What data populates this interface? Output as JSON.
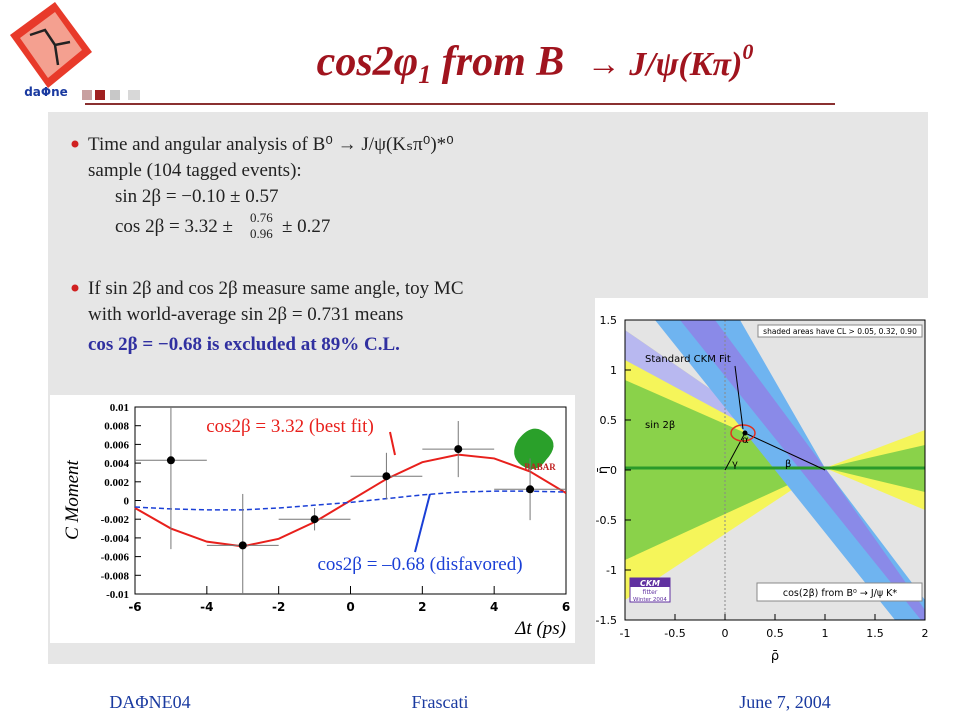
{
  "header": {
    "logo": "daΦne",
    "title": [
      "cos2",
      "φ",
      "1",
      " from B ",
      "→ J/ψ(Kπ)",
      "0"
    ]
  },
  "bullet_1": {
    "lines": [
      "Time and angular analysis of B⁰ → J/ψ(Kₛπ⁰)*⁰",
      "sample (104 tagged events):",
      "sin 2β = −0.10 ± 0.57"
    ],
    "result": {
      "lead": "cos 2β = 3.32 ±",
      "upper": "0.76",
      "lower": "0.96",
      "tail": "± 0.27"
    }
  },
  "bullet_2": {
    "lines": [
      "If sin 2β and cos 2β measure same angle, toy MC",
      "with world-average sin 2β = 0.731 means"
    ],
    "conclusion": "cos 2β = −0.68 is excluded at 89% C.L."
  },
  "footer": [
    "DAΦNE04",
    "Frascati",
    "June 7, 2004"
  ],
  "chart_data": [
    {
      "type": "scatter",
      "xlabel": "Δt (ps)",
      "ylabel": "C Moment",
      "logo": "BABAR",
      "xlim": [
        -6,
        6
      ],
      "ylim": [
        -0.01,
        0.01
      ],
      "xticks": [
        -6,
        -4,
        -2,
        0,
        2,
        4,
        6
      ],
      "yticks": [
        0.01,
        0.008,
        0.006,
        0.004,
        0.002,
        0,
        -0.002,
        -0.004,
        -0.006,
        -0.008,
        -0.01
      ],
      "points": {
        "x": [
          -5,
          -3,
          -1,
          1,
          3,
          5
        ],
        "y": [
          0.0043,
          -0.0048,
          -0.002,
          0.0026,
          0.0055,
          0.0012
        ],
        "xerr": [
          1,
          1,
          1,
          1,
          1,
          1
        ],
        "yerr": [
          0.0095,
          0.0055,
          0.0012,
          0.0025,
          0.003,
          0.0033
        ]
      },
      "curves": [
        {
          "name": "cos2β = 3.32 (best fit)",
          "color": "#e8201c",
          "dashed": false,
          "x": [
            -6,
            -5,
            -4,
            -3,
            -2,
            -1,
            0,
            1,
            2,
            3,
            4,
            5,
            6
          ],
          "values": [
            -0.0008,
            -0.003,
            -0.0044,
            -0.0049,
            -0.0041,
            -0.0023,
            0,
            0.0023,
            0.0041,
            0.0049,
            0.0045,
            0.0031,
            0.0008
          ]
        },
        {
          "name": "cos2β = –0.68 (disfavored)",
          "color": "#1a3fd6",
          "dashed": true,
          "x": [
            -6,
            -5,
            -4,
            -3,
            -2,
            -1,
            0,
            1,
            2,
            3,
            4,
            5,
            6
          ],
          "values": [
            -0.0007,
            -0.0009,
            -0.001,
            -0.001,
            -0.0008,
            -0.0005,
            -0.0002,
            0.0002,
            0.0006,
            0.0009,
            0.001,
            0.001,
            0.0009
          ]
        }
      ]
    },
    {
      "type": "ckm",
      "xlabel": "ρ̄",
      "ylabel": "η̄",
      "xlim": [
        -1,
        2
      ],
      "ylim": [
        -1.5,
        1.5
      ],
      "xticks": [
        -1,
        -0.5,
        0,
        0.5,
        1,
        1.5,
        2
      ],
      "yticks": [
        1.5,
        1,
        0.5,
        0,
        -0.5,
        -1,
        -1.5
      ],
      "apex": {
        "x": 0.2,
        "y": 0.37
      },
      "base_x": [
        0,
        1
      ],
      "labels": {
        "cl": "shaded areas have CL > 0.05, 0.32, 0.90",
        "fit": "Standard CKM Fit",
        "sin": "sin 2β",
        "alpha": "α",
        "gamma": "γ",
        "beta": "β",
        "constraint": "cos(2β) from B⁰ → J/ψ K*"
      },
      "logo": [
        "CKM",
        "fitter",
        "Winter 2004"
      ]
    }
  ]
}
